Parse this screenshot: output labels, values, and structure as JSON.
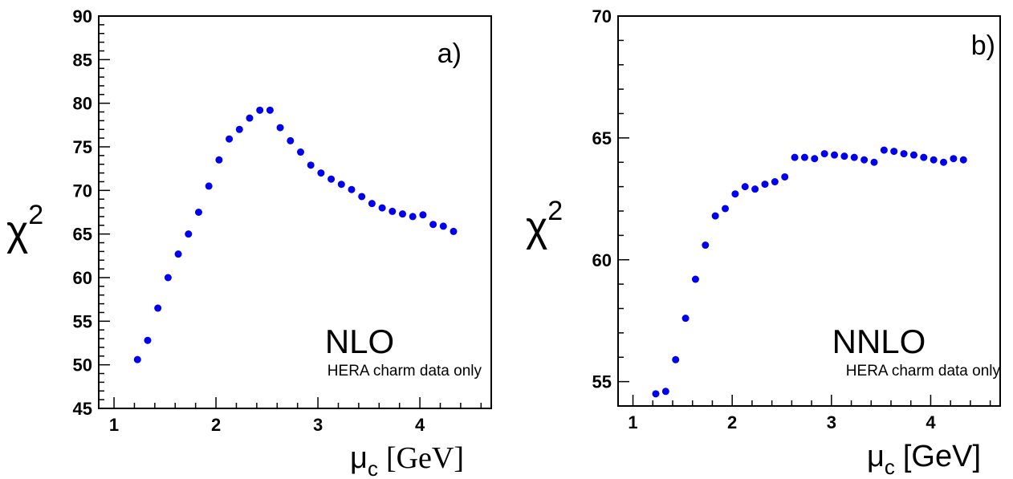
{
  "chart_data": [
    {
      "type": "scatter",
      "panel_label": "a)",
      "order_label": "NLO",
      "note": "HERA charm data only",
      "ylabel": "χ",
      "ylabel_sup": "2",
      "xlabel_main": "μ",
      "xlabel_sub": "c",
      "xlabel_unit": "[GeV]",
      "xlim": [
        0.85,
        4.7
      ],
      "ylim": [
        45,
        90
      ],
      "x_ticks": [
        1,
        2,
        3,
        4
      ],
      "x_tick_labels": [
        "1",
        "2",
        "3",
        "4"
      ],
      "y_ticks": [
        45,
        50,
        55,
        60,
        65,
        70,
        75,
        80,
        85,
        90
      ],
      "y_tick_labels": [
        "45",
        "50",
        "55",
        "60",
        "65",
        "70",
        "75",
        "80",
        "85",
        "90"
      ],
      "marker_color": "#0000ee",
      "x": [
        1.23,
        1.33,
        1.43,
        1.53,
        1.63,
        1.73,
        1.83,
        1.93,
        2.03,
        2.13,
        2.23,
        2.33,
        2.43,
        2.53,
        2.63,
        2.73,
        2.83,
        2.93,
        3.03,
        3.13,
        3.23,
        3.33,
        3.43,
        3.53,
        3.63,
        3.73,
        3.83,
        3.93,
        4.03,
        4.13,
        4.23,
        4.33
      ],
      "y": [
        50.6,
        52.8,
        56.5,
        60.0,
        62.7,
        65.0,
        67.5,
        70.5,
        73.5,
        75.9,
        77.0,
        78.3,
        79.2,
        79.2,
        77.2,
        75.7,
        74.4,
        72.9,
        72.0,
        71.3,
        70.7,
        70.1,
        69.3,
        68.5,
        68.0,
        67.6,
        67.3,
        67.0,
        67.2,
        66.1,
        65.9,
        65.3
      ]
    },
    {
      "type": "scatter",
      "panel_label": "b)",
      "order_label": "NNLO",
      "note": "HERA charm data only",
      "ylabel": "χ",
      "ylabel_sup": "2",
      "xlabel_main": "μ",
      "xlabel_sub": "c",
      "xlabel_unit": "[GeV]",
      "xlim": [
        0.85,
        4.7
      ],
      "ylim": [
        54,
        70
      ],
      "x_ticks": [
        1,
        2,
        3,
        4
      ],
      "x_tick_labels": [
        "1",
        "2",
        "3",
        "4"
      ],
      "y_ticks": [
        55,
        60,
        65,
        70
      ],
      "y_tick_labels": [
        "55",
        "60",
        "65",
        "70"
      ],
      "marker_color": "#0000ee",
      "x": [
        1.23,
        1.33,
        1.43,
        1.53,
        1.63,
        1.73,
        1.83,
        1.93,
        2.03,
        2.13,
        2.23,
        2.33,
        2.43,
        2.53,
        2.63,
        2.73,
        2.83,
        2.93,
        3.03,
        3.13,
        3.23,
        3.33,
        3.43,
        3.53,
        3.63,
        3.73,
        3.83,
        3.93,
        4.03,
        4.13,
        4.23,
        4.33
      ],
      "y": [
        54.5,
        54.6,
        55.9,
        57.6,
        59.2,
        60.6,
        61.8,
        62.1,
        62.7,
        63.0,
        62.9,
        63.1,
        63.2,
        63.4,
        64.2,
        64.2,
        64.15,
        64.35,
        64.3,
        64.25,
        64.2,
        64.1,
        64.0,
        64.5,
        64.45,
        64.35,
        64.3,
        64.2,
        64.1,
        64.0,
        64.15,
        64.1
      ]
    }
  ]
}
